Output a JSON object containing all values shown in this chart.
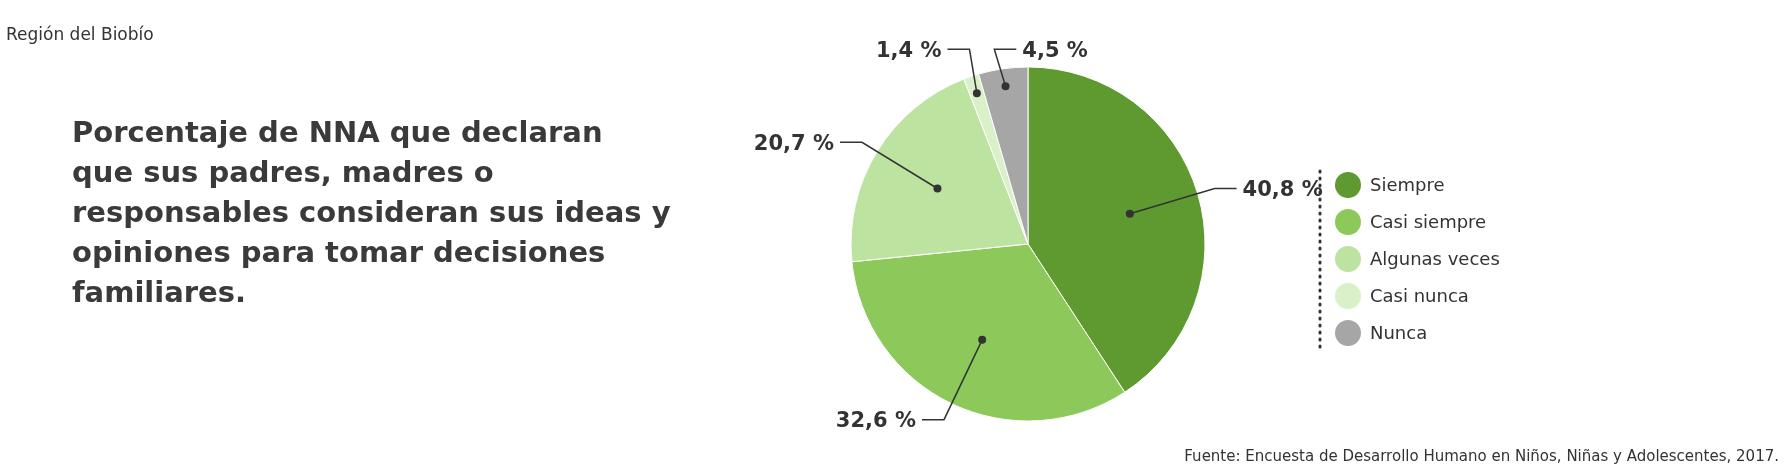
{
  "chart_data": {
    "type": "pie",
    "subtitle": "Región del Biobío",
    "title": "Porcentaje de NNA que declaran que sus padres, madres o responsables consideran sus ideas y opiniones para tomar decisiones familiares.",
    "categories": [
      "Siempre",
      "Casi siempre",
      "Algunas veces",
      "Casi nunca",
      "Nunca"
    ],
    "values": [
      40.8,
      32.6,
      20.7,
      1.4,
      4.5
    ],
    "value_labels": [
      "40,8 %",
      "32,6 %",
      "20,7 %",
      "1,4 %",
      "4,5 %"
    ],
    "colors": [
      "#5e9a2f",
      "#8cc95a",
      "#bde3a0",
      "#d9f0c9",
      "#a6a6a6"
    ],
    "legend": "right",
    "annotations": [
      "Fuente: Encuesta de Desarrollo Humano en Niños, Niñas y Adolescentes, 2017."
    ]
  }
}
